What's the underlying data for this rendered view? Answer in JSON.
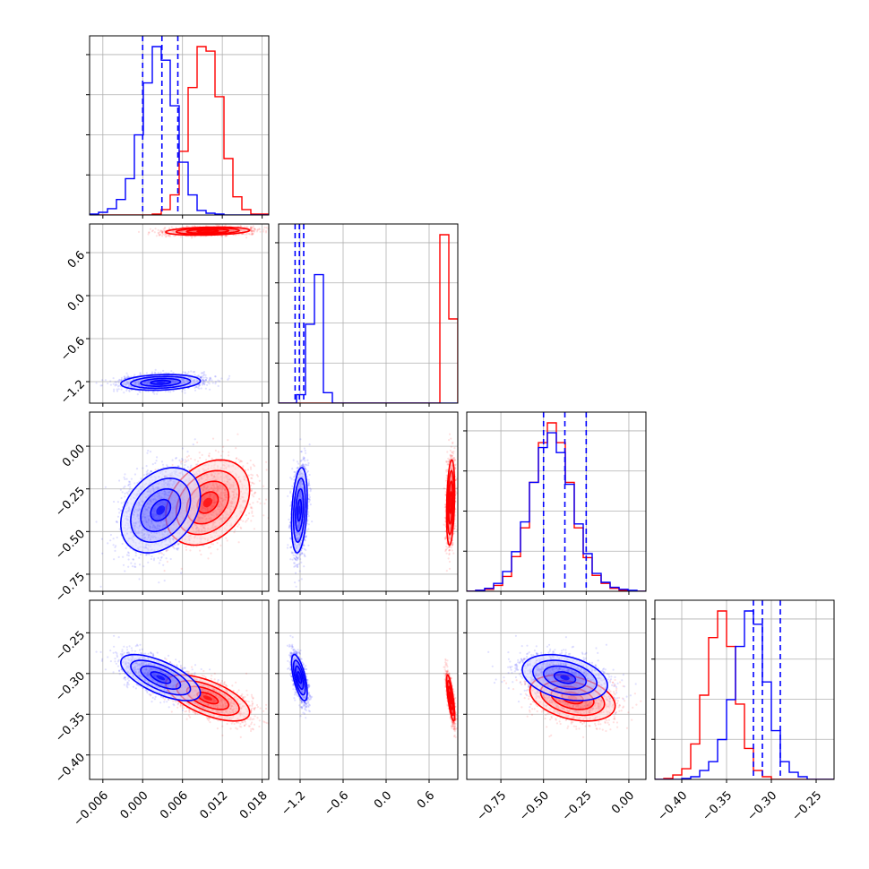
{
  "chart_data": {
    "type": "corner",
    "dimensions": 4,
    "series": [
      {
        "color": "#0000ff",
        "quantiles": [
          [
            0.0,
            0.0029,
            0.0053
          ],
          [
            -1.27,
            -1.21,
            -1.15
          ],
          [
            -0.5,
            -0.375,
            -0.25
          ],
          [
            -0.32,
            -0.31,
            -0.29
          ]
        ],
        "centers": [
          0.0027,
          -1.21,
          -0.375,
          -0.305
        ],
        "cov": [
          [
            9e-06,
            3e-05,
            0.00012,
            -2.8e-05
          ],
          [
            3e-05,
            0.003,
            0.002,
            -0.0005
          ],
          [
            0.00012,
            0.002,
            0.0156,
            -0.0006
          ],
          [
            -2.8e-05,
            -0.0005,
            -0.0006,
            0.0002
          ]
        ]
      },
      {
        "color": "#ff0000",
        "quantiles": [],
        "centers": [
          0.0098,
          0.9,
          -0.33,
          -0.33
        ],
        "cov": [
          [
            1e-05,
            2e-05,
            0.00012,
            -2.8e-05
          ],
          [
            2e-05,
            0.0008,
            0.001,
            -0.0003
          ],
          [
            0.00012,
            0.001,
            0.0156,
            -0.0006
          ],
          [
            -2.8e-05,
            -0.0003,
            -0.0006,
            0.0002
          ]
        ]
      }
    ],
    "hist_bins": {
      "d0": {
        "range": [
          -0.008,
          0.019
        ],
        "bins": 20
      },
      "d1": {
        "range": [
          -1.5,
          1.0
        ],
        "bins": 20
      },
      "d2": {
        "range": [
          -0.95,
          0.1
        ],
        "bins": 20
      },
      "d3": {
        "range": [
          -0.43,
          -0.23
        ],
        "bins": 20
      }
    },
    "hist_counts": {
      "d0": {
        "blue": [
          1,
          3,
          7,
          17,
          40,
          88,
          145,
          185,
          170,
          120,
          58,
          22,
          5,
          2,
          1,
          0,
          0,
          0,
          0,
          0
        ],
        "red": [
          0,
          0,
          0,
          0,
          0,
          0,
          0,
          1,
          6,
          22,
          70,
          140,
          185,
          180,
          130,
          62,
          20,
          6,
          1,
          1
        ]
      },
      "d1": {
        "blue": [
          0,
          0,
          8,
          75,
          122,
          10,
          0,
          0,
          0,
          0,
          0,
          0,
          0,
          0,
          0,
          0,
          0,
          0,
          0,
          0
        ],
        "red": [
          0,
          0,
          0,
          0,
          0,
          0,
          0,
          0,
          0,
          0,
          0,
          0,
          0,
          0,
          0,
          0,
          0,
          0,
          160,
          80
        ]
      },
      "d2": {
        "blue": [
          0,
          1,
          3,
          8,
          20,
          40,
          70,
          110,
          145,
          160,
          140,
          108,
          68,
          38,
          18,
          9,
          4,
          2,
          1,
          0
        ],
        "red": [
          0,
          1,
          2,
          6,
          15,
          35,
          64,
          110,
          150,
          170,
          150,
          110,
          64,
          34,
          16,
          8,
          3,
          1,
          0,
          0
        ]
      },
      "d3": {
        "blue": [
          0,
          0,
          0,
          1,
          3,
          10,
          20,
          45,
          90,
          150,
          190,
          175,
          110,
          55,
          20,
          8,
          3,
          0,
          0,
          0
        ],
        "red": [
          0,
          1,
          5,
          12,
          40,
          95,
          160,
          190,
          150,
          85,
          35,
          10,
          3,
          0,
          0,
          0,
          0,
          0,
          0,
          0
        ]
      }
    },
    "axes": {
      "x": [
        {
          "range": [
            -0.008,
            0.019
          ],
          "ticks": [
            -0.006,
            0.0,
            0.006,
            0.012,
            0.018
          ],
          "tick_labels": [
            "−0.006",
            "0.000",
            "0.006",
            "0.012",
            "0.018"
          ]
        },
        {
          "range": [
            -1.5,
            1.0
          ],
          "ticks": [
            -1.2,
            -0.6,
            0.0,
            0.6
          ],
          "tick_labels": [
            "−1.2",
            "−0.6",
            "0.0",
            "0.6"
          ]
        },
        {
          "range": [
            -0.95,
            0.1
          ],
          "ticks": [
            -0.75,
            -0.5,
            -0.25,
            0.0
          ],
          "tick_labels": [
            "−0.75",
            "−0.50",
            "−0.25",
            "0.00"
          ]
        },
        {
          "range": [
            -0.43,
            -0.23
          ],
          "ticks": [
            -0.4,
            -0.35,
            -0.3,
            -0.25
          ],
          "tick_labels": [
            "−0.40",
            "−0.35",
            "−0.30",
            "−0.25"
          ]
        }
      ],
      "y": [
        null,
        {
          "range": [
            -1.5,
            1.0
          ],
          "ticks": [
            -1.2,
            -0.6,
            0.0,
            0.6
          ],
          "tick_labels": [
            "−1.2",
            "−0.6",
            "0.0",
            "0.6"
          ]
        },
        {
          "range": [
            -0.85,
            0.2
          ],
          "ticks": [
            -0.75,
            -0.5,
            -0.25,
            0.0
          ],
          "tick_labels": [
            "−0.75",
            "−0.50",
            "−0.25",
            "0.00"
          ]
        },
        {
          "range": [
            -0.43,
            -0.21
          ],
          "ticks": [
            -0.4,
            -0.35,
            -0.3,
            -0.25
          ],
          "tick_labels": [
            "−0.40",
            "−0.35",
            "−0.30",
            "−0.25"
          ]
        }
      ]
    },
    "grid": true,
    "title": "",
    "xlabel": "",
    "ylabel": ""
  }
}
